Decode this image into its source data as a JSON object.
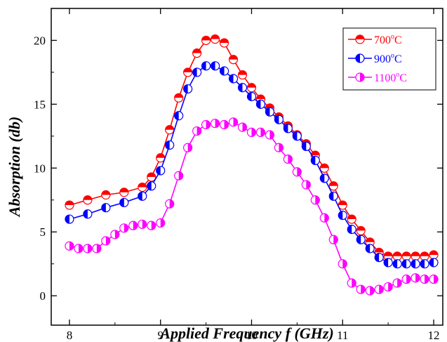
{
  "chart_data": {
    "type": "line",
    "xlabel": "Applied Frequency f (GHz)",
    "ylabel": "Absorption (db)",
    "xlim": [
      7.8,
      12.1
    ],
    "ylim": [
      -2.3,
      22.5
    ],
    "x_ticks": [
      "8",
      "9",
      "10",
      "11",
      "12"
    ],
    "y_ticks": [
      "0",
      "5",
      "10",
      "15",
      "20"
    ],
    "grid": false,
    "legend_position": "top-right",
    "series": [
      {
        "name": "700°C",
        "label_main": "700",
        "label_sup": "o",
        "label_tail": "C",
        "color": "#ff0000",
        "marker": "circle-half-top",
        "points": [
          [
            8.0,
            7.1
          ],
          [
            8.2,
            7.5
          ],
          [
            8.4,
            7.9
          ],
          [
            8.6,
            8.1
          ],
          [
            8.8,
            8.5
          ],
          [
            8.9,
            9.3
          ],
          [
            9.0,
            10.8
          ],
          [
            9.1,
            13.0
          ],
          [
            9.2,
            15.5
          ],
          [
            9.3,
            17.5
          ],
          [
            9.4,
            19.0
          ],
          [
            9.5,
            20.0
          ],
          [
            9.6,
            20.1
          ],
          [
            9.7,
            19.8
          ],
          [
            9.8,
            18.5
          ],
          [
            9.9,
            17.3
          ],
          [
            10.0,
            16.3
          ],
          [
            10.1,
            15.4
          ],
          [
            10.2,
            14.7
          ],
          [
            10.3,
            14.0
          ],
          [
            10.4,
            13.3
          ],
          [
            10.5,
            12.6
          ],
          [
            10.6,
            11.9
          ],
          [
            10.7,
            11.0
          ],
          [
            10.8,
            10.0
          ],
          [
            10.9,
            8.6
          ],
          [
            11.0,
            7.1
          ],
          [
            11.1,
            6.0
          ],
          [
            11.2,
            5.1
          ],
          [
            11.3,
            4.2
          ],
          [
            11.4,
            3.4
          ],
          [
            11.5,
            3.1
          ],
          [
            11.6,
            3.1
          ],
          [
            11.7,
            3.1
          ],
          [
            11.8,
            3.1
          ],
          [
            11.9,
            3.1
          ],
          [
            12.0,
            3.2
          ]
        ]
      },
      {
        "name": "900°C",
        "label_main": "900",
        "label_sup": "o",
        "label_tail": "C",
        "color": "#0000ff",
        "marker": "circle-half-left",
        "points": [
          [
            8.0,
            6.0
          ],
          [
            8.2,
            6.4
          ],
          [
            8.4,
            6.9
          ],
          [
            8.6,
            7.3
          ],
          [
            8.8,
            7.8
          ],
          [
            8.9,
            8.6
          ],
          [
            9.0,
            9.8
          ],
          [
            9.1,
            11.8
          ],
          [
            9.2,
            14.1
          ],
          [
            9.3,
            16.2
          ],
          [
            9.4,
            17.5
          ],
          [
            9.5,
            18.0
          ],
          [
            9.6,
            18.0
          ],
          [
            9.7,
            17.6
          ],
          [
            9.8,
            17.0
          ],
          [
            9.9,
            16.3
          ],
          [
            10.0,
            15.6
          ],
          [
            10.1,
            15.0
          ],
          [
            10.2,
            14.4
          ],
          [
            10.3,
            13.8
          ],
          [
            10.4,
            13.1
          ],
          [
            10.5,
            12.5
          ],
          [
            10.6,
            11.7
          ],
          [
            10.7,
            10.6
          ],
          [
            10.8,
            9.2
          ],
          [
            10.9,
            7.8
          ],
          [
            11.0,
            6.3
          ],
          [
            11.1,
            5.2
          ],
          [
            11.2,
            4.4
          ],
          [
            11.3,
            3.7
          ],
          [
            11.4,
            3.0
          ],
          [
            11.5,
            2.6
          ],
          [
            11.6,
            2.5
          ],
          [
            11.7,
            2.5
          ],
          [
            11.8,
            2.5
          ],
          [
            11.9,
            2.5
          ],
          [
            12.0,
            2.6
          ]
        ]
      },
      {
        "name": "1100°C",
        "label_main": "1100",
        "label_sup": "o",
        "label_tail": "C",
        "color": "#ff00ff",
        "marker": "circle-half-right",
        "points": [
          [
            8.0,
            3.9
          ],
          [
            8.1,
            3.7
          ],
          [
            8.2,
            3.7
          ],
          [
            8.3,
            3.7
          ],
          [
            8.4,
            4.3
          ],
          [
            8.5,
            4.8
          ],
          [
            8.6,
            5.3
          ],
          [
            8.7,
            5.5
          ],
          [
            8.8,
            5.6
          ],
          [
            8.9,
            5.5
          ],
          [
            9.0,
            5.7
          ],
          [
            9.1,
            7.2
          ],
          [
            9.2,
            9.4
          ],
          [
            9.3,
            11.6
          ],
          [
            9.4,
            12.9
          ],
          [
            9.5,
            13.4
          ],
          [
            9.6,
            13.5
          ],
          [
            9.7,
            13.4
          ],
          [
            9.8,
            13.6
          ],
          [
            9.9,
            13.2
          ],
          [
            10.0,
            12.8
          ],
          [
            10.1,
            12.8
          ],
          [
            10.2,
            12.6
          ],
          [
            10.3,
            11.6
          ],
          [
            10.4,
            10.7
          ],
          [
            10.5,
            9.7
          ],
          [
            10.6,
            8.7
          ],
          [
            10.7,
            7.5
          ],
          [
            10.8,
            6.1
          ],
          [
            10.9,
            4.4
          ],
          [
            11.0,
            2.5
          ],
          [
            11.1,
            1.0
          ],
          [
            11.2,
            0.5
          ],
          [
            11.3,
            0.4
          ],
          [
            11.4,
            0.5
          ],
          [
            11.5,
            0.7
          ],
          [
            11.6,
            1.0
          ],
          [
            11.7,
            1.3
          ],
          [
            11.8,
            1.4
          ],
          [
            11.9,
            1.3
          ],
          [
            12.0,
            1.3
          ]
        ]
      }
    ]
  }
}
